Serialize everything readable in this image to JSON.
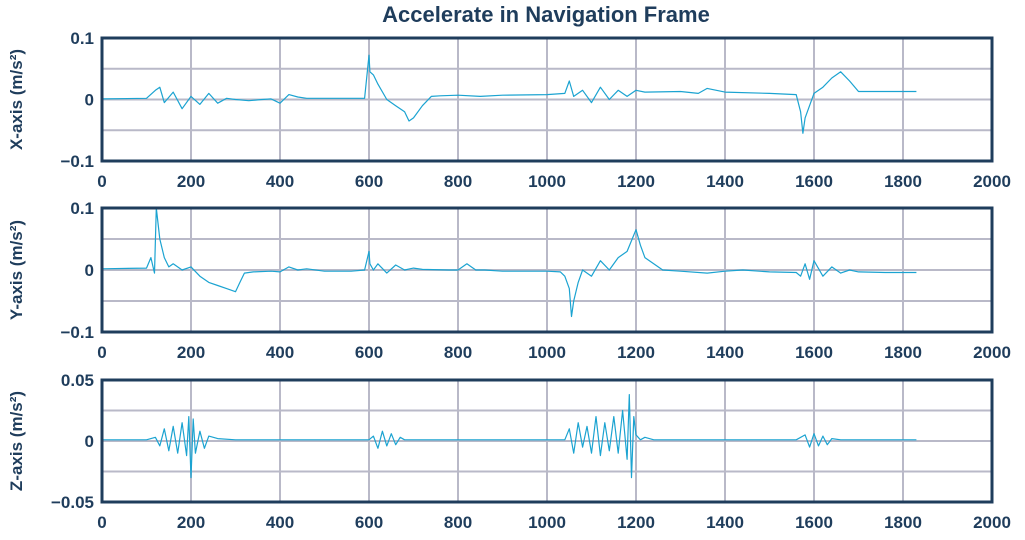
{
  "title": "Accelerate in Navigation Frame",
  "colors": {
    "frame": "#1f3d5c",
    "grid": "#b9b9c8",
    "line": "#1ba3d1",
    "text": "#1f3d5c"
  },
  "chart_data": [
    {
      "type": "line",
      "ylabel": "X-axis (m/s²)",
      "xlim": [
        0,
        2000
      ],
      "ylim": [
        -0.1,
        0.1
      ],
      "xticks": [
        0,
        200,
        400,
        600,
        800,
        1000,
        1200,
        1400,
        1600,
        1800,
        2000
      ],
      "xtick_labels": [
        "0",
        "200",
        "400",
        "600",
        "800",
        "1000",
        "1200",
        "1400",
        "1600",
        "1800",
        "2000"
      ],
      "yticks": [
        -0.1,
        0,
        0.1
      ],
      "ytick_labels": [
        "−0.1",
        "0",
        "0.1"
      ],
      "grid": true,
      "series": [
        {
          "x": [
            0,
            100,
            120,
            130,
            140,
            160,
            180,
            200,
            220,
            240,
            260,
            280,
            300,
            330,
            360,
            380,
            400,
            420,
            440,
            460,
            560,
            590,
            600,
            602,
            610,
            620,
            640,
            660,
            680,
            690,
            700,
            720,
            740,
            760,
            800,
            850,
            900,
            1000,
            1040,
            1050,
            1060,
            1080,
            1100,
            1120,
            1140,
            1160,
            1180,
            1200,
            1220,
            1300,
            1340,
            1360,
            1400,
            1500,
            1560,
            1570,
            1575,
            1580,
            1600,
            1620,
            1640,
            1660,
            1680,
            1700,
            1760,
            1830
          ],
          "y": [
            0.001,
            0.002,
            0.015,
            0.02,
            -0.005,
            0.012,
            -0.015,
            0.005,
            -0.008,
            0.01,
            -0.006,
            0.002,
            0.0,
            -0.002,
            0.0,
            0.001,
            -0.006,
            0.008,
            0.004,
            0.002,
            0.002,
            0.002,
            0.072,
            0.045,
            0.04,
            0.025,
            0.0,
            -0.01,
            -0.02,
            -0.035,
            -0.03,
            -0.01,
            0.005,
            0.006,
            0.007,
            0.005,
            0.007,
            0.008,
            0.01,
            0.03,
            0.005,
            0.015,
            -0.005,
            0.02,
            0.0,
            0.015,
            0.005,
            0.015,
            0.012,
            0.013,
            0.01,
            0.018,
            0.012,
            0.01,
            0.008,
            -0.02,
            -0.055,
            -0.03,
            0.01,
            0.02,
            0.035,
            0.045,
            0.03,
            0.013,
            0.013,
            0.013
          ]
        }
      ]
    },
    {
      "type": "line",
      "ylabel": "Y-axis (m/s²)",
      "xlim": [
        0,
        2000
      ],
      "ylim": [
        -0.1,
        0.1
      ],
      "xticks": [
        0,
        200,
        400,
        600,
        800,
        1000,
        1200,
        1400,
        1600,
        1800,
        2000
      ],
      "xtick_labels": [
        "0",
        "200",
        "400",
        "600",
        "800",
        "1000",
        "1200",
        "1400",
        "1600",
        "1800",
        "2000"
      ],
      "yticks": [
        -0.1,
        0,
        0.1
      ],
      "ytick_labels": [
        "−0.1",
        "0",
        "0.1"
      ],
      "grid": true,
      "series": [
        {
          "x": [
            0,
            100,
            110,
            118,
            122,
            130,
            140,
            150,
            160,
            180,
            200,
            220,
            240,
            260,
            280,
            300,
            310,
            320,
            340,
            380,
            400,
            420,
            440,
            460,
            500,
            560,
            590,
            600,
            602,
            610,
            620,
            640,
            660,
            680,
            700,
            720,
            780,
            800,
            820,
            830,
            840,
            860,
            900,
            1000,
            1030,
            1040,
            1050,
            1055,
            1060,
            1070,
            1080,
            1100,
            1120,
            1140,
            1160,
            1180,
            1200,
            1210,
            1220,
            1260,
            1300,
            1360,
            1400,
            1440,
            1500,
            1560,
            1570,
            1580,
            1590,
            1600,
            1620,
            1640,
            1660,
            1680,
            1700,
            1760,
            1830
          ],
          "y": [
            0.002,
            0.003,
            0.02,
            -0.005,
            0.1,
            0.05,
            0.02,
            0.005,
            0.01,
            0.0,
            0.005,
            -0.01,
            -0.02,
            -0.025,
            -0.03,
            -0.035,
            -0.02,
            -0.005,
            -0.003,
            -0.002,
            -0.003,
            0.005,
            0.0,
            0.002,
            -0.002,
            -0.002,
            0.0,
            0.03,
            0.01,
            0.0,
            0.01,
            -0.005,
            0.008,
            0.0,
            0.003,
            0.001,
            0.0,
            0.0,
            0.01,
            0.005,
            0.0,
            0.0,
            -0.002,
            -0.002,
            -0.003,
            -0.01,
            -0.03,
            -0.075,
            -0.05,
            -0.02,
            0.0,
            -0.01,
            0.015,
            0.0,
            0.02,
            0.03,
            0.065,
            0.04,
            0.02,
            0.0,
            -0.002,
            -0.005,
            -0.002,
            0.0,
            -0.003,
            -0.004,
            -0.01,
            0.01,
            -0.015,
            0.015,
            -0.01,
            0.005,
            -0.005,
            0.0,
            -0.003,
            -0.004,
            -0.004
          ]
        }
      ]
    },
    {
      "type": "line",
      "ylabel": "Z-axis (m/s²)",
      "xlim": [
        0,
        2000
      ],
      "ylim": [
        -0.05,
        0.05
      ],
      "xticks": [
        0,
        200,
        400,
        600,
        800,
        1000,
        1200,
        1400,
        1600,
        1800,
        2000
      ],
      "xtick_labels": [
        "0",
        "200",
        "400",
        "600",
        "800",
        "1000",
        "1200",
        "1400",
        "1600",
        "1800",
        "2000"
      ],
      "yticks": [
        -0.05,
        0,
        0.05
      ],
      "ytick_labels": [
        "−0.05",
        "0",
        "0.05"
      ],
      "grid": true,
      "series": [
        {
          "x": [
            0,
            100,
            120,
            130,
            140,
            150,
            160,
            170,
            180,
            190,
            195,
            200,
            205,
            210,
            220,
            230,
            240,
            260,
            300,
            400,
            500,
            600,
            610,
            620,
            630,
            640,
            650,
            660,
            670,
            680,
            700,
            800,
            900,
            1000,
            1040,
            1050,
            1060,
            1070,
            1080,
            1090,
            1100,
            1110,
            1120,
            1130,
            1140,
            1150,
            1160,
            1170,
            1180,
            1185,
            1190,
            1195,
            1200,
            1210,
            1220,
            1240,
            1300,
            1400,
            1500,
            1560,
            1580,
            1590,
            1600,
            1610,
            1620,
            1630,
            1640,
            1660,
            1700,
            1800,
            1830
          ],
          "y": [
            0.001,
            0.001,
            0.003,
            -0.004,
            0.01,
            -0.008,
            0.012,
            -0.01,
            0.015,
            -0.012,
            0.02,
            -0.03,
            0.018,
            -0.01,
            0.008,
            -0.006,
            0.004,
            0.002,
            0.001,
            0.001,
            0.001,
            0.001,
            0.004,
            -0.006,
            0.008,
            -0.004,
            0.006,
            -0.003,
            0.003,
            0.001,
            0.001,
            0.001,
            0.001,
            0.001,
            0.001,
            0.01,
            -0.01,
            0.015,
            -0.005,
            0.012,
            -0.01,
            0.02,
            -0.012,
            0.015,
            -0.008,
            0.02,
            -0.01,
            0.025,
            -0.015,
            0.038,
            -0.03,
            0.02,
            0.005,
            0.001,
            0.003,
            0.001,
            0.001,
            0.001,
            0.001,
            0.001,
            0.005,
            -0.005,
            0.006,
            -0.004,
            0.004,
            -0.003,
            0.002,
            0.001,
            0.001,
            0.001,
            0.001
          ]
        }
      ]
    }
  ]
}
